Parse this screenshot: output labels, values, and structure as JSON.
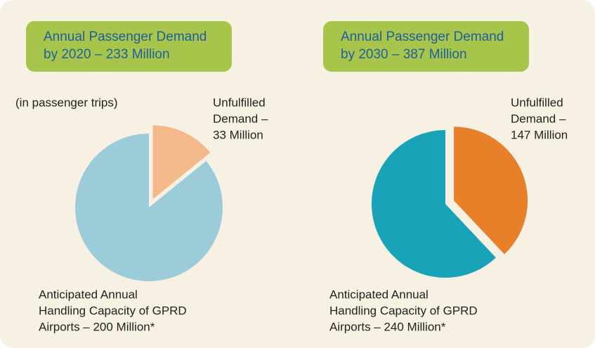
{
  "chart_data": [
    {
      "type": "pie",
      "title": [
        "Annual Passenger Demand",
        "by 2020 – 233 Million"
      ],
      "subtitle": "(in passenger trips)",
      "values": [
        33,
        200
      ],
      "value_labels": [
        [
          "Unfulfilled",
          "Demand –",
          "33 Million"
        ],
        [
          "Anticipated Annual",
          "Handling Capacity of GPRD",
          "Airports – 200 Million*"
        ]
      ],
      "colors": [
        "#f4b98a",
        "#9ccbd9"
      ],
      "exploded": [
        true,
        false
      ]
    },
    {
      "type": "pie",
      "title": [
        "Annual Passenger Demand",
        "by 2030 – 387 Million"
      ],
      "values": [
        147,
        240
      ],
      "value_labels": [
        [
          "Unfulfilled",
          "Demand –",
          "147 Million"
        ],
        [
          "Anticipated Annual",
          "Handling Capacity of GPRD",
          "Airports – 240 Million*"
        ]
      ],
      "colors": [
        "#e8802a",
        "#19a3b8"
      ],
      "exploded": [
        true,
        false
      ]
    }
  ]
}
